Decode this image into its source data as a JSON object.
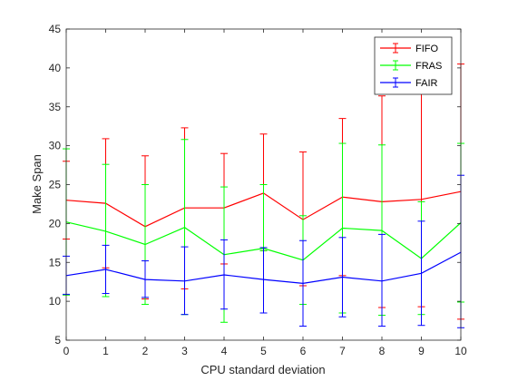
{
  "chart_data": {
    "type": "line",
    "title": "",
    "xlabel": "CPU standard deviation",
    "ylabel": "Make Span",
    "xlim": [
      0,
      10
    ],
    "ylim": [
      5,
      45
    ],
    "xticks": [
      0,
      1,
      2,
      3,
      4,
      5,
      6,
      7,
      8,
      9,
      10
    ],
    "yticks": [
      5,
      10,
      15,
      20,
      25,
      30,
      35,
      40,
      45
    ],
    "grid": false,
    "legend_position": "top-right",
    "x": [
      0,
      1,
      2,
      3,
      4,
      5,
      6,
      7,
      8,
      9,
      10
    ],
    "series": [
      {
        "name": "FIFO",
        "color": "#ff0000",
        "values": [
          23.0,
          22.6,
          19.6,
          22.0,
          22.0,
          23.9,
          20.5,
          23.4,
          22.8,
          23.1,
          24.1
        ],
        "error_low": [
          18.0,
          14.3,
          10.3,
          11.6,
          14.8,
          16.5,
          12.0,
          13.3,
          9.2,
          9.3,
          7.7
        ],
        "error_high": [
          28.0,
          30.9,
          28.7,
          32.3,
          29.0,
          31.5,
          29.2,
          33.5,
          36.4,
          37.1,
          40.5
        ]
      },
      {
        "name": "FRAS",
        "color": "#00ff00",
        "values": [
          20.2,
          19.0,
          17.3,
          19.5,
          16.0,
          16.8,
          15.3,
          19.4,
          19.1,
          15.5,
          20.1
        ],
        "error_low": [
          10.8,
          10.6,
          9.6,
          8.3,
          7.3,
          16.5,
          9.6,
          8.5,
          8.2,
          8.3,
          9.9
        ],
        "error_high": [
          29.6,
          27.6,
          25.0,
          30.8,
          24.7,
          25.0,
          21.0,
          30.3,
          30.1,
          22.8,
          30.3
        ]
      },
      {
        "name": "FAIR",
        "color": "#0000ff",
        "values": [
          13.3,
          14.1,
          12.8,
          12.6,
          13.4,
          12.8,
          12.3,
          13.1,
          12.6,
          13.6,
          16.3
        ],
        "error_low": [
          10.9,
          11.0,
          10.5,
          8.3,
          9.0,
          8.5,
          6.8,
          8.0,
          6.8,
          6.9,
          6.6
        ],
        "error_high": [
          15.8,
          17.2,
          15.2,
          17.0,
          17.9,
          16.9,
          17.8,
          18.2,
          18.6,
          20.3,
          26.2
        ]
      }
    ]
  }
}
